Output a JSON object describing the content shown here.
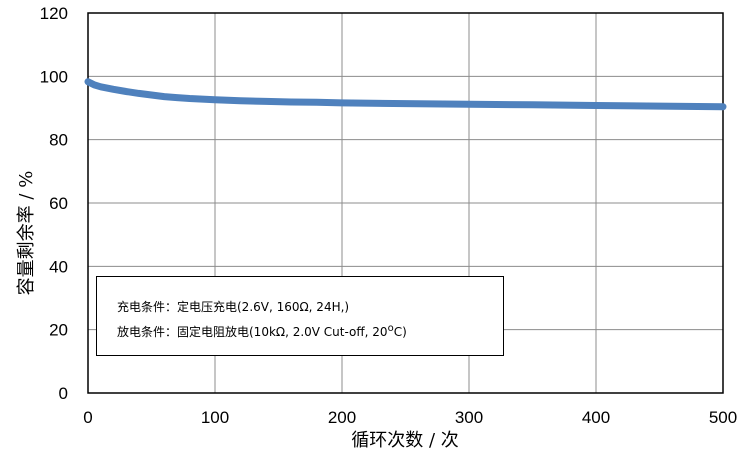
{
  "chart_data": {
    "type": "line",
    "xlabel": "循环次数 / 次",
    "ylabel": "容量剩余率 / %",
    "xlim": [
      0,
      500
    ],
    "ylim": [
      0,
      120
    ],
    "x_ticks": [
      "0",
      "100",
      "200",
      "300",
      "400",
      "500"
    ],
    "y_ticks": [
      "0",
      "20",
      "40",
      "60",
      "80",
      "100",
      "120"
    ],
    "grid": true,
    "series": [
      {
        "color": "#4f81bd",
        "x": [
          0,
          5,
          10,
          20,
          30,
          40,
          50,
          60,
          70,
          80,
          90,
          100,
          120,
          140,
          160,
          180,
          200,
          250,
          300,
          350,
          400,
          450,
          500
        ],
        "y": [
          98.3,
          97.3,
          96.7,
          95.9,
          95.2,
          94.6,
          94.1,
          93.6,
          93.3,
          93.0,
          92.8,
          92.6,
          92.3,
          92.1,
          91.9,
          91.8,
          91.6,
          91.4,
          91.2,
          91.0,
          90.8,
          90.6,
          90.4
        ]
      }
    ],
    "annotations": [
      "充电条件：定电压充电(2.6V, 160Ω, 24H,)",
      "放电条件：固定电阻放电(10kΩ, 2.0V Cut-off, 20",
      "o",
      "C)"
    ]
  }
}
